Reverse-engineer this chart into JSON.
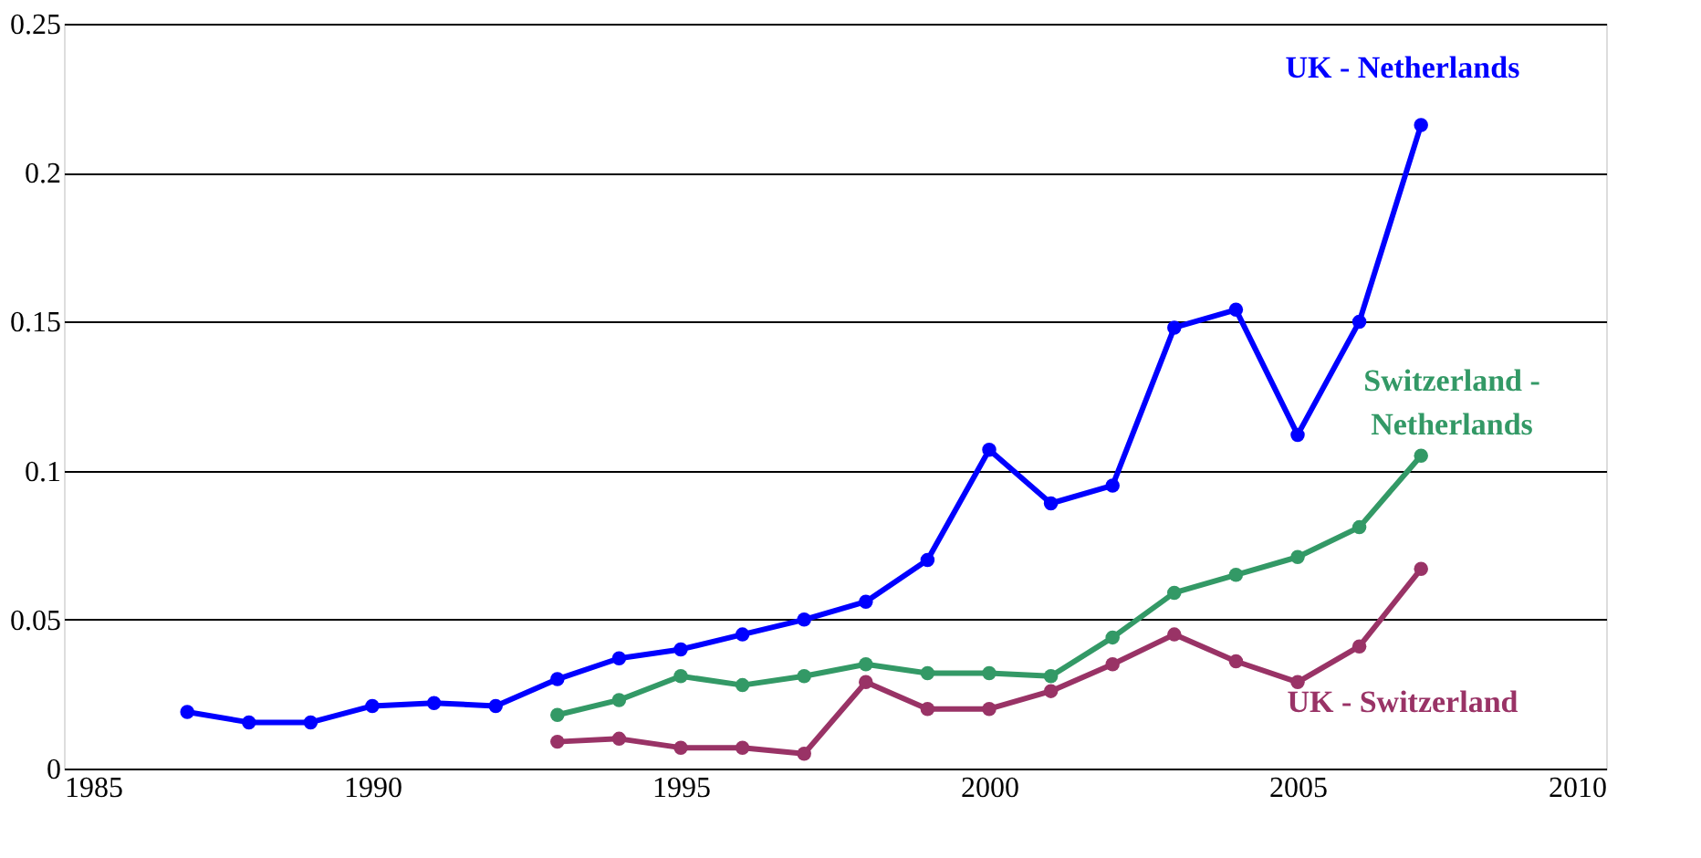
{
  "chart_data": {
    "type": "line",
    "x": [
      1987,
      1988,
      1989,
      1990,
      1991,
      1992,
      1993,
      1994,
      1995,
      1996,
      1997,
      1998,
      1999,
      2000,
      2001,
      2002,
      2003,
      2004,
      2005,
      2006,
      2007
    ],
    "series": [
      {
        "name": "UK - Netherlands",
        "color": "#0000ff",
        "values": [
          0.019,
          0.0155,
          0.0155,
          0.021,
          0.022,
          0.021,
          0.03,
          0.037,
          0.04,
          0.045,
          0.05,
          0.056,
          0.07,
          0.107,
          0.089,
          0.095,
          0.148,
          0.154,
          0.112,
          0.15,
          0.216
        ]
      },
      {
        "name": "Switzerland - Netherlands",
        "color": "#339966",
        "values": [
          null,
          null,
          null,
          null,
          null,
          null,
          0.018,
          0.023,
          0.031,
          0.028,
          0.031,
          0.035,
          0.032,
          0.032,
          0.031,
          0.044,
          0.059,
          0.065,
          0.071,
          0.081,
          0.105
        ]
      },
      {
        "name": "UK - Switzerland",
        "color": "#993366",
        "values": [
          null,
          null,
          null,
          null,
          null,
          null,
          0.009,
          0.01,
          0.007,
          0.007,
          0.005,
          0.029,
          0.02,
          0.02,
          0.026,
          0.035,
          0.045,
          0.036,
          0.029,
          0.041,
          0.067
        ]
      }
    ],
    "xlim": [
      1985,
      2010
    ],
    "xticks": [
      1985,
      1990,
      1995,
      2000,
      2005,
      2010
    ],
    "ylim": [
      0,
      0.25
    ],
    "yticks": [
      0,
      0.05,
      0.1,
      0.15,
      0.2,
      0.25
    ],
    "grid": "y",
    "marker": "circle",
    "line_style": "solid"
  }
}
